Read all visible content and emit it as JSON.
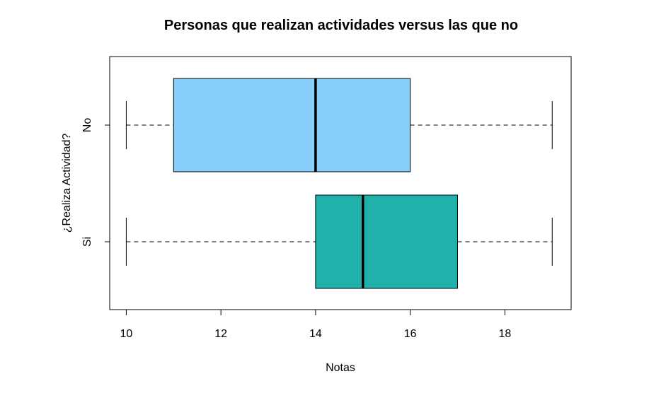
{
  "chart_data": {
    "type": "boxplot",
    "orientation": "horizontal",
    "title": "Personas que realizan actividades versus las que no",
    "xlabel": "Notas",
    "ylabel": "¿Realiza Actividad?",
    "xlim": [
      9.65,
      19.4
    ],
    "xticks": [
      "10",
      "12",
      "14",
      "16",
      "18"
    ],
    "grid": false,
    "series": [
      {
        "name": "No",
        "min": 10,
        "q1": 11,
        "median": 14,
        "q3": 16,
        "max": 19,
        "color": "#87cefa"
      },
      {
        "name": "Si",
        "min": 10,
        "q1": 14,
        "median": 15,
        "q3": 17,
        "max": 19,
        "color": "#20b2aa"
      }
    ]
  }
}
